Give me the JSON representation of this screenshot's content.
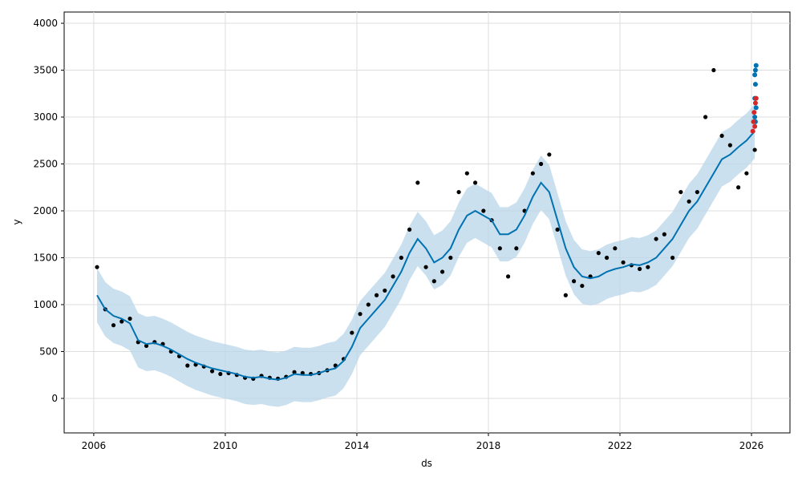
{
  "chart_data": {
    "type": "forecast",
    "x_label": "ds",
    "y_label": "y",
    "xlim": [
      2005.1,
      2027.17
    ],
    "ylim": [
      -368,
      4120
    ],
    "xticks": [
      2006,
      2010,
      2014,
      2018,
      2022,
      2026
    ],
    "yticks": [
      0,
      500,
      1000,
      1500,
      2000,
      2500,
      3000,
      3500,
      4000
    ],
    "grid": true,
    "x": [
      2006.1,
      2006.35,
      2006.6,
      2006.85,
      2007.1,
      2007.35,
      2007.6,
      2007.85,
      2008.1,
      2008.35,
      2008.6,
      2008.85,
      2009.1,
      2009.35,
      2009.6,
      2009.85,
      2010.1,
      2010.35,
      2010.6,
      2010.85,
      2011.1,
      2011.35,
      2011.6,
      2011.85,
      2012.1,
      2012.35,
      2012.6,
      2012.85,
      2013.1,
      2013.35,
      2013.6,
      2013.85,
      2014.1,
      2014.35,
      2014.6,
      2014.85,
      2015.1,
      2015.35,
      2015.6,
      2015.85,
      2016.1,
      2016.35,
      2016.6,
      2016.85,
      2017.1,
      2017.35,
      2017.6,
      2017.85,
      2018.1,
      2018.35,
      2018.6,
      2018.85,
      2019.1,
      2019.35,
      2019.6,
      2019.85,
      2020.1,
      2020.35,
      2020.6,
      2020.85,
      2021.1,
      2021.35,
      2021.6,
      2021.85,
      2022.1,
      2022.35,
      2022.6,
      2022.85,
      2023.1,
      2023.35,
      2023.6,
      2023.85,
      2024.1,
      2024.35,
      2024.6,
      2024.85,
      2025.1,
      2025.35,
      2025.6,
      2025.85,
      2026.1
    ],
    "actual": {
      "color": "#000000",
      "values": [
        1400,
        950,
        780,
        820,
        850,
        600,
        560,
        600,
        580,
        500,
        450,
        350,
        360,
        340,
        290,
        260,
        270,
        250,
        220,
        210,
        240,
        220,
        210,
        230,
        280,
        270,
        260,
        270,
        300,
        350,
        420,
        700,
        900,
        1000,
        1100,
        1150,
        1300,
        1500,
        1800,
        2300,
        1400,
        1250,
        1350,
        1500,
        2200,
        2400,
        2300,
        2000,
        1900,
        1600,
        1300,
        1600,
        2000,
        2400,
        2500,
        2600,
        1800,
        1100,
        1250,
        1200,
        1300,
        1550,
        1500,
        1600,
        1450,
        1420,
        1380,
        1400,
        1700,
        1750,
        1500,
        2200,
        2100,
        2200,
        3000,
        3500,
        2800,
        2700,
        2250,
        2400,
        2650
      ]
    },
    "yhat": {
      "color": "#0072B2",
      "values": [
        1100,
        950,
        880,
        850,
        800,
        620,
        580,
        590,
        560,
        520,
        470,
        420,
        380,
        350,
        320,
        300,
        280,
        260,
        230,
        220,
        230,
        210,
        200,
        220,
        260,
        250,
        250,
        270,
        300,
        320,
        400,
        550,
        750,
        850,
        950,
        1050,
        1200,
        1350,
        1550,
        1700,
        1600,
        1450,
        1500,
        1600,
        1800,
        1950,
        2000,
        1950,
        1900,
        1750,
        1750,
        1800,
        1950,
        2150,
        2300,
        2200,
        1900,
        1600,
        1400,
        1300,
        1280,
        1300,
        1350,
        1380,
        1400,
        1430,
        1420,
        1450,
        1500,
        1600,
        1700,
        1850,
        2000,
        2100,
        2250,
        2400,
        2550,
        2600,
        2680,
        2750,
        2850
      ]
    },
    "band": {
      "color": "#b9d5e8",
      "lower": [
        810,
        660,
        590,
        560,
        510,
        330,
        290,
        300,
        270,
        230,
        180,
        130,
        90,
        60,
        30,
        10,
        -10,
        -30,
        -60,
        -70,
        -60,
        -80,
        -90,
        -70,
        -30,
        -40,
        -40,
        -20,
        10,
        30,
        110,
        260,
        460,
        560,
        660,
        760,
        910,
        1060,
        1260,
        1410,
        1310,
        1160,
        1210,
        1310,
        1510,
        1660,
        1710,
        1660,
        1610,
        1460,
        1460,
        1510,
        1660,
        1860,
        2010,
        1910,
        1610,
        1310,
        1110,
        1010,
        990,
        1010,
        1060,
        1090,
        1110,
        1140,
        1130,
        1160,
        1210,
        1310,
        1410,
        1560,
        1710,
        1810,
        1960,
        2110,
        2260,
        2310,
        2390,
        2460,
        2560
      ],
      "upper": [
        1390,
        1240,
        1170,
        1140,
        1090,
        910,
        870,
        880,
        850,
        810,
        760,
        710,
        670,
        640,
        610,
        590,
        570,
        550,
        520,
        510,
        520,
        500,
        490,
        510,
        550,
        540,
        540,
        560,
        590,
        610,
        690,
        840,
        1040,
        1140,
        1240,
        1340,
        1490,
        1640,
        1840,
        1990,
        1890,
        1740,
        1790,
        1890,
        2090,
        2240,
        2290,
        2240,
        2190,
        2040,
        2040,
        2090,
        2240,
        2440,
        2590,
        2490,
        2190,
        1890,
        1690,
        1590,
        1570,
        1590,
        1640,
        1670,
        1690,
        1720,
        1710,
        1740,
        1790,
        1890,
        1990,
        2140,
        2290,
        2390,
        2540,
        2690,
        2840,
        2890,
        2970,
        3040,
        3140
      ]
    },
    "markers": [
      {
        "color": "#0072B2",
        "x": [
          2026.1,
          2026.1,
          2026.12,
          2026.12,
          2026.14,
          2026.14,
          2026.1,
          2026.12
        ],
        "values": [
          3000,
          3200,
          3350,
          3500,
          3550,
          3100,
          3450,
          2950
        ]
      },
      {
        "color": "#d62728",
        "x": [
          2026.04,
          2026.06,
          2026.08,
          2026.1,
          2026.12,
          2026.14
        ],
        "values": [
          2850,
          2950,
          3050,
          2900,
          3150,
          3200
        ]
      }
    ]
  }
}
